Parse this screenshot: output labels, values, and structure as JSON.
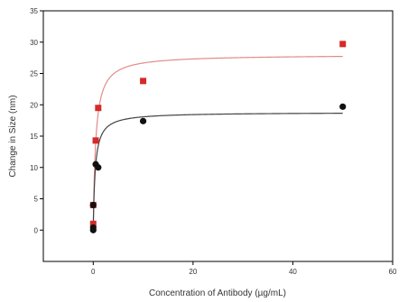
{
  "chart_data": {
    "type": "scatter",
    "title": "",
    "xlabel": "Concentration of Antibody (µg/mL)",
    "ylabel": "Change in Size (nm)",
    "xlim": [
      -10,
      60
    ],
    "ylim": [
      -5,
      35
    ],
    "xticks": [
      0,
      20,
      40,
      60
    ],
    "yticks": [
      0,
      5,
      10,
      15,
      20,
      25,
      30,
      35
    ],
    "grid": false,
    "legend": "none",
    "series": [
      {
        "marker": "square",
        "color": "#d62a28",
        "x": [
          0,
          0,
          0.5,
          1,
          10,
          50
        ],
        "y": [
          1,
          4,
          14.3,
          19.5,
          23.8,
          29.7
        ],
        "fit_color": "#e38a89",
        "fit_ymax": 28.0,
        "fit_kd": 0.5
      },
      {
        "marker": "circle",
        "color": "#111111",
        "x": [
          0,
          0,
          0,
          0.5,
          1,
          10,
          50
        ],
        "y": [
          0,
          0.4,
          4,
          10.5,
          10,
          17.4,
          19.7
        ],
        "fit_color": "#444444",
        "fit_ymax": 18.8,
        "fit_kd": 0.4
      }
    ]
  }
}
